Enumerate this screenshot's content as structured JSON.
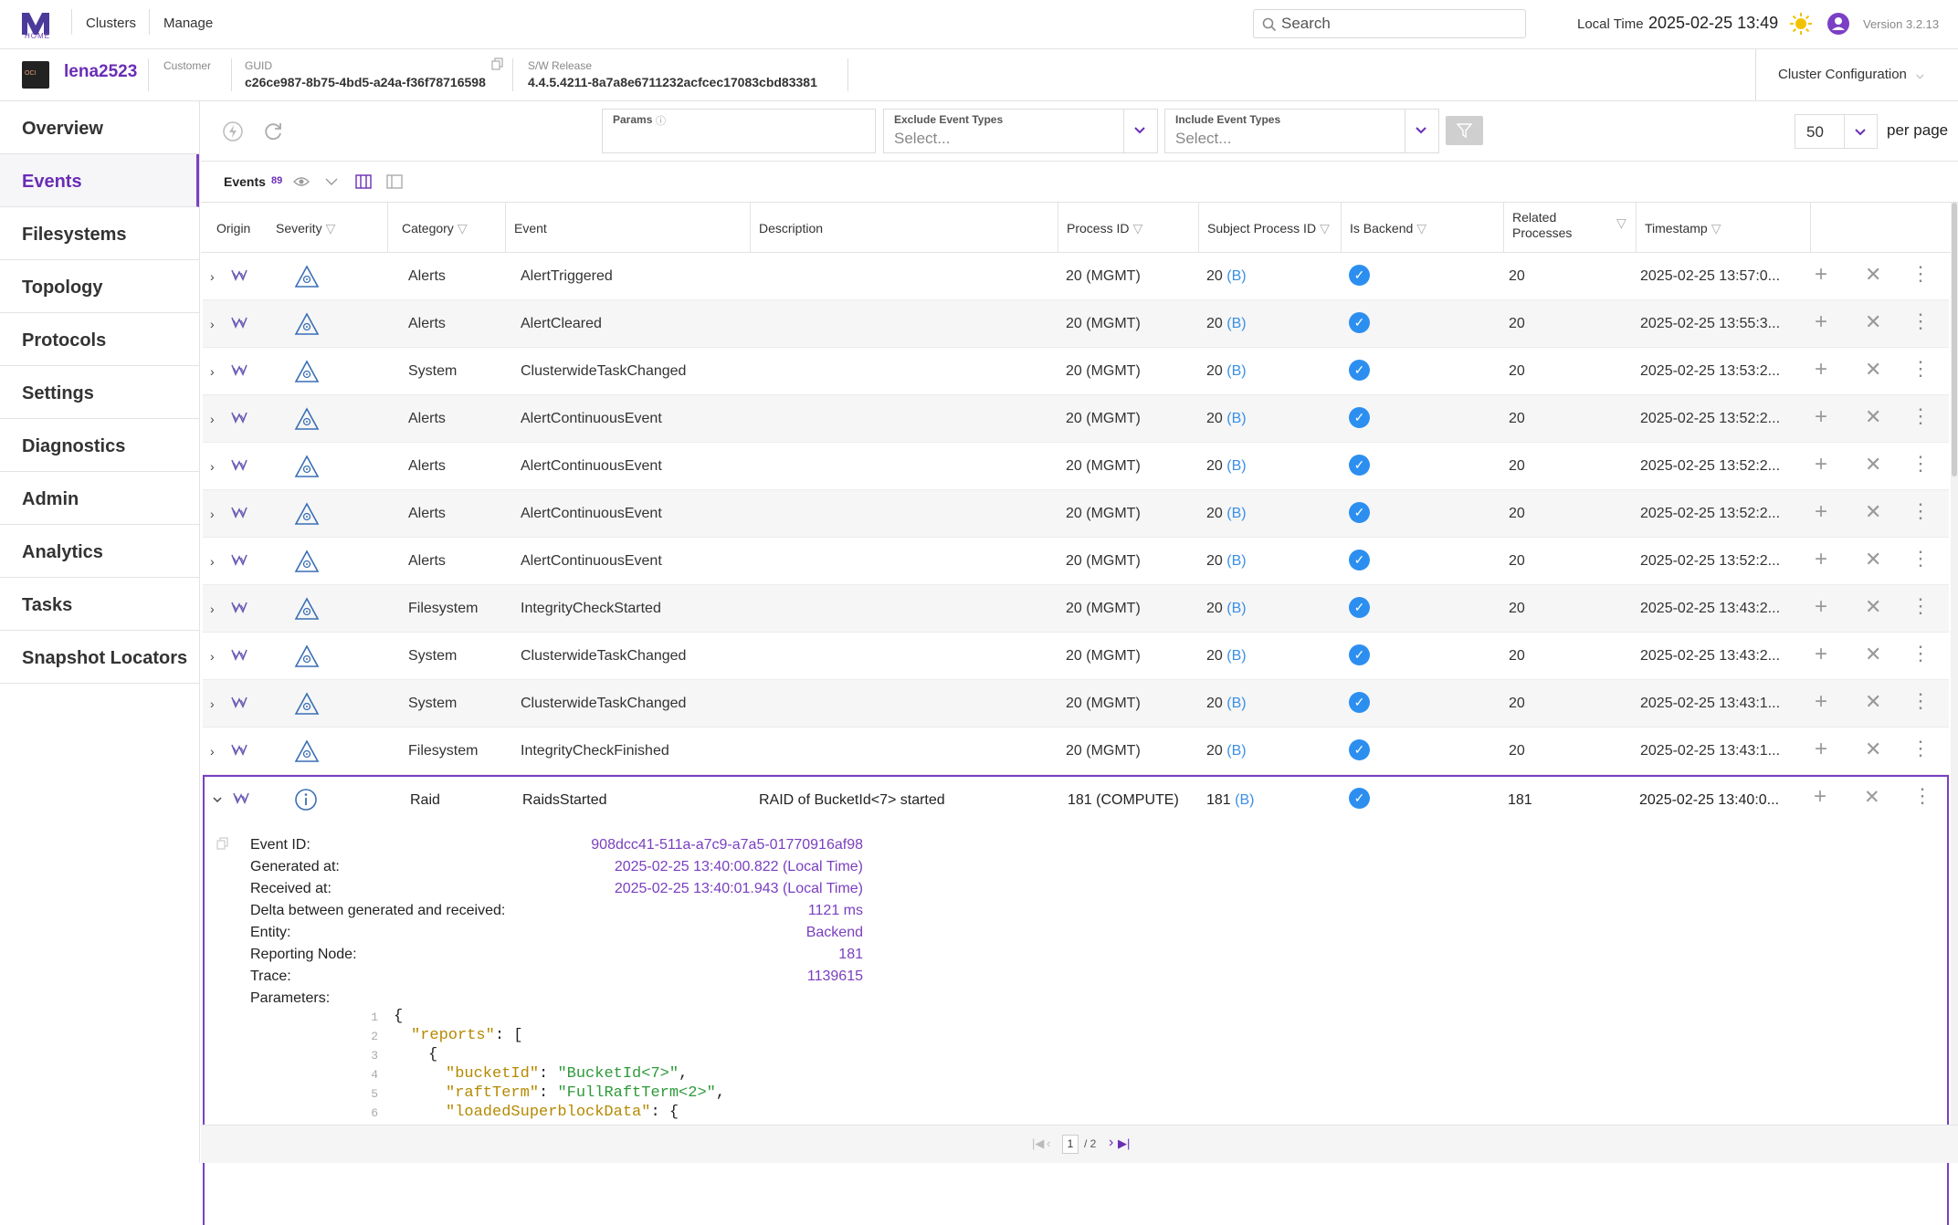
{
  "topbar": {
    "logo_text": "HOME",
    "nav_clusters": "Clusters",
    "nav_manage": "Manage",
    "search_placeholder": "Search",
    "local_time_label": "Local Time",
    "local_time_value": "2025-02-25 13:49",
    "version": "Version 3.2.13"
  },
  "cluster": {
    "name": "lena2523",
    "avatar_text": "OCI",
    "customer_label": "Customer",
    "guid_label": "GUID",
    "guid_value": "c26ce987-8b75-4bd5-a24a-f36f78716598",
    "release_label": "S/W Release",
    "release_value": "4.4.5.4211-8a7a8e6711232acfcec17083cbd83381",
    "config_label": "Cluster Configuration"
  },
  "sidebar": {
    "items": [
      {
        "label": "Overview"
      },
      {
        "label": "Events"
      },
      {
        "label": "Filesystems"
      },
      {
        "label": "Topology"
      },
      {
        "label": "Protocols"
      },
      {
        "label": "Settings"
      },
      {
        "label": "Diagnostics"
      },
      {
        "label": "Admin"
      },
      {
        "label": "Analytics"
      },
      {
        "label": "Tasks"
      },
      {
        "label": "Snapshot Locators"
      }
    ]
  },
  "filters": {
    "params_label": "Params",
    "exclude_label": "Exclude Event Types",
    "exclude_placeholder": "Select...",
    "include_label": "Include Event Types",
    "include_placeholder": "Select...",
    "per_page_value": "50",
    "per_page_label": "per page"
  },
  "events_header": {
    "title": "Events",
    "count": "89"
  },
  "columns": [
    "Origin",
    "Severity",
    "Category",
    "Event",
    "Description",
    "Process ID",
    "Subject Process ID",
    "Is Backend",
    "Related Processes",
    "Timestamp"
  ],
  "colors": {
    "accent": "#6a2db5",
    "link_blue": "#3a8fe6",
    "check_blue": "#2c8ff0"
  },
  "rows": [
    {
      "category": "Alerts",
      "event": "AlertTriggered",
      "description": "",
      "pid": "20 (MGMT)",
      "spid": "20",
      "spid_suffix": "(B)",
      "related": "20",
      "ts": "2025-02-25 13:57:0..."
    },
    {
      "category": "Alerts",
      "event": "AlertCleared",
      "description": "",
      "pid": "20 (MGMT)",
      "spid": "20",
      "spid_suffix": "(B)",
      "related": "20",
      "ts": "2025-02-25 13:55:3..."
    },
    {
      "category": "System",
      "event": "ClusterwideTaskChanged",
      "description": "",
      "pid": "20 (MGMT)",
      "spid": "20",
      "spid_suffix": "(B)",
      "related": "20",
      "ts": "2025-02-25 13:53:2..."
    },
    {
      "category": "Alerts",
      "event": "AlertContinuousEvent",
      "description": "",
      "pid": "20 (MGMT)",
      "spid": "20",
      "spid_suffix": "(B)",
      "related": "20",
      "ts": "2025-02-25 13:52:2..."
    },
    {
      "category": "Alerts",
      "event": "AlertContinuousEvent",
      "description": "",
      "pid": "20 (MGMT)",
      "spid": "20",
      "spid_suffix": "(B)",
      "related": "20",
      "ts": "2025-02-25 13:52:2..."
    },
    {
      "category": "Alerts",
      "event": "AlertContinuousEvent",
      "description": "",
      "pid": "20 (MGMT)",
      "spid": "20",
      "spid_suffix": "(B)",
      "related": "20",
      "ts": "2025-02-25 13:52:2..."
    },
    {
      "category": "Alerts",
      "event": "AlertContinuousEvent",
      "description": "",
      "pid": "20 (MGMT)",
      "spid": "20",
      "spid_suffix": "(B)",
      "related": "20",
      "ts": "2025-02-25 13:52:2..."
    },
    {
      "category": "Filesystem",
      "event": "IntegrityCheckStarted",
      "description": "",
      "pid": "20 (MGMT)",
      "spid": "20",
      "spid_suffix": "(B)",
      "related": "20",
      "ts": "2025-02-25 13:43:2..."
    },
    {
      "category": "System",
      "event": "ClusterwideTaskChanged",
      "description": "",
      "pid": "20 (MGMT)",
      "spid": "20",
      "spid_suffix": "(B)",
      "related": "20",
      "ts": "2025-02-25 13:43:2..."
    },
    {
      "category": "System",
      "event": "ClusterwideTaskChanged",
      "description": "",
      "pid": "20 (MGMT)",
      "spid": "20",
      "spid_suffix": "(B)",
      "related": "20",
      "ts": "2025-02-25 13:43:1..."
    },
    {
      "category": "Filesystem",
      "event": "IntegrityCheckFinished",
      "description": "",
      "pid": "20 (MGMT)",
      "spid": "20",
      "spid_suffix": "(B)",
      "related": "20",
      "ts": "2025-02-25 13:43:1..."
    }
  ],
  "expanded": {
    "category": "Raid",
    "event": "RaidsStarted",
    "description": "RAID of BucketId<7> started",
    "pid": "181 (COMPUTE)",
    "spid": "181",
    "spid_suffix": "(B)",
    "related": "181",
    "ts": "2025-02-25 13:40:0...",
    "details": [
      {
        "label": "Event ID:",
        "value": "908dcc41-511a-a7c9-a7a5-01770916af98"
      },
      {
        "label": "Generated at:",
        "value": "2025-02-25 13:40:00.822 (Local Time)"
      },
      {
        "label": "Received at:",
        "value": "2025-02-25 13:40:01.943 (Local Time)"
      },
      {
        "label": "Delta between generated and received:",
        "value": "1121 ms"
      },
      {
        "label": "Entity:",
        "value": "Backend"
      },
      {
        "label": "Reporting Node:",
        "value": "181"
      },
      {
        "label": "Trace:",
        "value": "1139615"
      },
      {
        "label": "Parameters:",
        "value": ""
      }
    ],
    "json_lines": [
      {
        "n": "1",
        "text": "{"
      },
      {
        "n": "2",
        "key": "\"reports\"",
        "rest": ": ["
      },
      {
        "n": "3",
        "text": "{"
      },
      {
        "n": "4",
        "key": "\"bucketId\"",
        "rest": ": ",
        "str": "\"BucketId<7>\"",
        "tail": ","
      },
      {
        "n": "5",
        "key": "\"raftTerm\"",
        "rest": ": ",
        "str": "\"FullRaftTerm<2>\"",
        "tail": ","
      },
      {
        "n": "6",
        "key": "\"loadedSuperblockData\"",
        "rest": ": {"
      }
    ]
  },
  "pagination": {
    "current": "1",
    "total": "/ 2"
  }
}
